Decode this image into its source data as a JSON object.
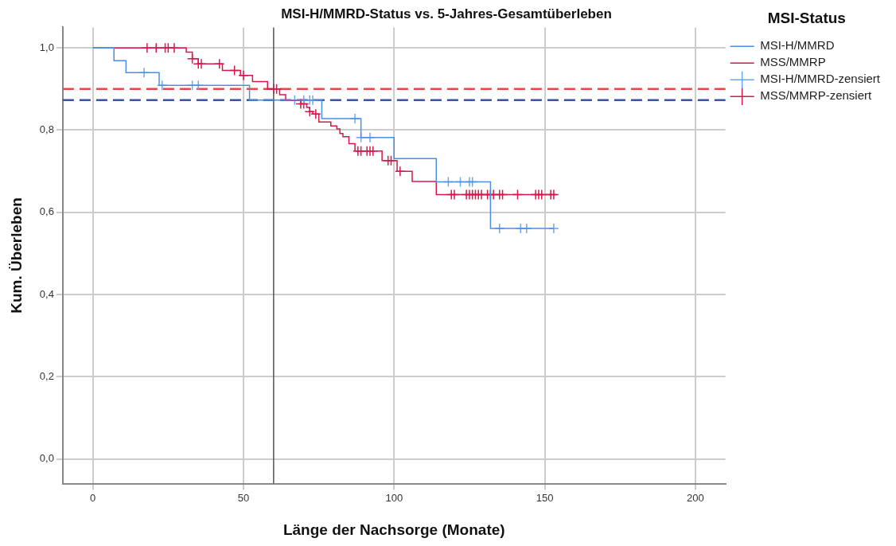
{
  "chart_data": {
    "type": "step",
    "title": "MSI-H/MMRD-Status vs. 5-Jahres-Gesamtüberleben",
    "xlabel": "Länge der Nachsorge (Monate)",
    "ylabel": "Kum. Überleben",
    "legend_title": "MSI-Status",
    "legend": "right",
    "grid": true,
    "xlim": [
      -10,
      210
    ],
    "xticks": [
      0,
      50,
      100,
      150,
      200
    ],
    "ylim": [
      -0.06,
      1.05
    ],
    "yticks": [
      {
        "value": 0,
        "label": "0,0"
      },
      {
        "value": 0.2,
        "label": "0,2"
      },
      {
        "value": 0.4,
        "label": "0,4"
      },
      {
        "value": 0.6,
        "label": "0,6"
      },
      {
        "value": 0.8,
        "label": "0,8"
      },
      {
        "value": 1,
        "label": "1,0"
      }
    ],
    "series": [
      {
        "name": "MSI-H/MMRD",
        "type": "step",
        "color": "#4a8ee6",
        "x": [
          0,
          7,
          11,
          22,
          52,
          76,
          89,
          100,
          114,
          132,
          153
        ],
        "values": [
          1,
          0.969,
          0.94,
          0.909,
          0.873,
          0.828,
          0.782,
          0.731,
          0.674,
          0.561,
          0.561
        ]
      },
      {
        "name": "MSS/MMRP",
        "type": "step",
        "color": "#d8174a",
        "x": [
          0,
          31,
          33,
          35,
          43,
          49,
          53,
          58,
          62,
          64,
          69,
          71,
          72,
          73,
          75,
          79,
          81,
          82,
          83,
          85,
          87,
          96,
          101,
          106,
          114,
          154
        ],
        "values": [
          1,
          0.99,
          0.974,
          0.961,
          0.945,
          0.933,
          0.918,
          0.9,
          0.886,
          0.872,
          0.864,
          0.855,
          0.845,
          0.839,
          0.82,
          0.81,
          0.803,
          0.792,
          0.784,
          0.767,
          0.749,
          0.726,
          0.7,
          0.675,
          0.643,
          0.643
        ]
      },
      {
        "name": "MSI-H/MMRD-zensiert",
        "type": "scatter",
        "marker": "cross",
        "color": "#6aa8ee",
        "x": [
          17,
          23,
          33,
          35,
          67,
          70,
          72,
          73,
          87,
          89,
          92,
          118,
          122,
          125,
          126,
          135,
          142,
          144,
          153
        ],
        "values": [
          0.94,
          0.909,
          0.909,
          0.909,
          0.873,
          0.873,
          0.873,
          0.873,
          0.828,
          0.782,
          0.782,
          0.674,
          0.674,
          0.674,
          0.674,
          0.561,
          0.561,
          0.561,
          0.561
        ]
      },
      {
        "name": "MSS/MMRP-zensiert",
        "type": "scatter",
        "marker": "cross",
        "color": "#d8174a",
        "x": [
          18,
          21,
          24,
          25,
          27,
          33,
          35,
          36,
          42,
          47,
          50,
          60,
          61,
          69,
          70,
          72,
          74,
          88,
          89,
          91,
          92,
          93,
          98,
          99,
          102,
          119,
          120,
          124,
          125,
          126,
          127,
          128,
          129,
          131,
          132,
          133,
          135,
          136,
          141,
          147,
          148,
          149,
          152,
          153
        ],
        "values": [
          1,
          1,
          1,
          1,
          1,
          0.974,
          0.961,
          0.961,
          0.961,
          0.945,
          0.933,
          0.9,
          0.9,
          0.864,
          0.864,
          0.845,
          0.839,
          0.749,
          0.749,
          0.749,
          0.749,
          0.749,
          0.726,
          0.726,
          0.7,
          0.643,
          0.643,
          0.643,
          0.643,
          0.643,
          0.643,
          0.643,
          0.643,
          0.643,
          0.643,
          0.643,
          0.643,
          0.643,
          0.643,
          0.643,
          0.643,
          0.643,
          0.643,
          0.643
        ]
      }
    ],
    "ref_lines": [
      {
        "axis": "y",
        "value": 0.9,
        "color": "#f04444",
        "line_style": "dashed"
      },
      {
        "axis": "y",
        "value": 0.873,
        "color": "#3a52a8",
        "line_style": "dashed"
      },
      {
        "axis": "x",
        "value": 60,
        "color": "#555555",
        "line_style": "solid"
      }
    ]
  }
}
